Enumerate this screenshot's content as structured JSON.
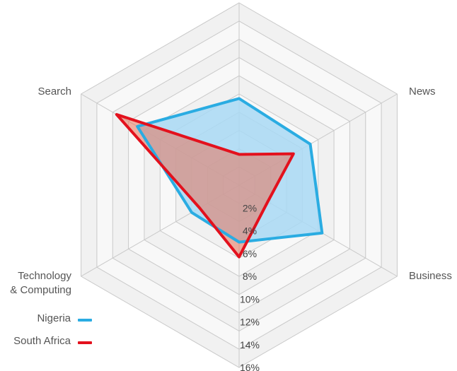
{
  "chart_data": {
    "type": "radar",
    "axes": [
      "News",
      "Business",
      "",
      "Technology & Computing",
      "Search",
      ""
    ],
    "axis_labels": {
      "news": "News",
      "business": "Business",
      "tech_line1": "Technology",
      "tech_line2": "& Computing",
      "search": "Search"
    },
    "ticks": [
      "2%",
      "4%",
      "6%",
      "8%",
      "10%",
      "12%",
      "14%",
      "16%"
    ],
    "tick_values": [
      2,
      4,
      6,
      8,
      10,
      12,
      14,
      16
    ],
    "rmax": 16,
    "series": [
      {
        "name": "Nigeria",
        "color": "#2aace2",
        "fill": "#a9d9f4",
        "values": [
          7.6,
          7.2,
          8.4,
          5.0,
          4.8,
          10.3
        ]
      },
      {
        "name": "South Africa",
        "color": "#e3111d",
        "fill": "#e8735a",
        "values": [
          2.7,
          5.5,
          2.9,
          6.3,
          4.0,
          12.4
        ]
      }
    ],
    "legend_position": "bottom-left",
    "grid": true
  }
}
